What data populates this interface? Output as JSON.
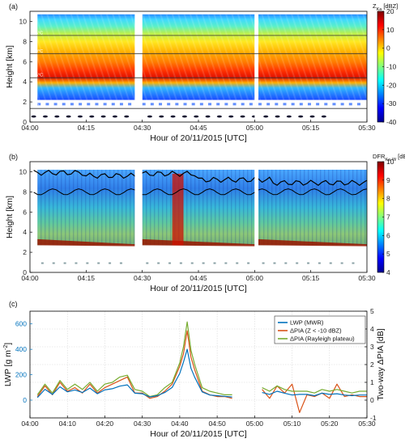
{
  "chart_data": [
    {
      "type": "heatmap",
      "panel_label": "(a)",
      "ylabel": "Height [km]",
      "xlabel": "Hour of 20/11/2015 [UTC]",
      "xlim": [
        "04:00",
        "05:30"
      ],
      "ylim": [
        0,
        11
      ],
      "x_ticks": [
        "04:00",
        "04:15",
        "04:30",
        "04:45",
        "05:00",
        "05:15",
        "05:30"
      ],
      "y_ticks": [
        "0",
        "2",
        "4",
        "6",
        "8",
        "10"
      ],
      "colorbar": {
        "label_main": "Z",
        "label_sub": "Ka",
        "label_unit": "[dBZ]",
        "range": [
          -40,
          20
        ],
        "ticks": [
          "20",
          "10",
          "0",
          "-10",
          "-20",
          "-30",
          "-40"
        ]
      },
      "isotherms": [
        {
          "label": "-45°C",
          "height_km": 8.6
        },
        {
          "label": "-30°C",
          "height_km": 6.8
        },
        {
          "label": "-15°C",
          "height_km": 4.4
        },
        {
          "label": "0°C",
          "height_km": 1.35
        }
      ],
      "data_gaps": [
        [
          "04:28",
          "04:30"
        ],
        [
          "05:00",
          "05:01"
        ]
      ]
    },
    {
      "type": "heatmap",
      "panel_label": "(b)",
      "ylabel": "Height [km]",
      "xlabel": "Hour of 20/11/2015 [UTC]",
      "xlim": [
        "04:00",
        "05:30"
      ],
      "ylim": [
        0,
        11
      ],
      "x_ticks": [
        "04:00",
        "04:15",
        "04:30",
        "04:45",
        "05:00",
        "05:15",
        "05:30"
      ],
      "y_ticks": [
        "0",
        "2",
        "4",
        "6",
        "8",
        "10"
      ],
      "colorbar": {
        "label_main": "DFR",
        "label_sub": "Ka-W",
        "label_unit": "[dB]",
        "range": [
          4,
          10
        ],
        "ticks": [
          "10",
          "9",
          "8",
          "7",
          "6",
          "5",
          "4"
        ]
      },
      "data_gaps": [
        [
          "04:28",
          "04:30"
        ],
        [
          "05:00",
          "05:01"
        ]
      ]
    },
    {
      "type": "line",
      "panel_label": "(c)",
      "xlabel": "Hour of 20/11/2015 [UTC]",
      "ylabel_left": "LWP [g m",
      "ylabel_left_sup": "-2",
      "ylabel_left_end": "]",
      "ylabel_right": "Two-way ΔPIA [dB]",
      "xlim": [
        "04:00",
        "05:30"
      ],
      "ylim_left": [
        -140,
        700
      ],
      "ylim_right": [
        -1,
        5
      ],
      "x_ticks": [
        "04:00",
        "04:10",
        "04:20",
        "04:30",
        "04:40",
        "04:50",
        "05:00",
        "05:10",
        "05:20",
        "05:30"
      ],
      "y_ticks_left": [
        "0",
        "200",
        "400",
        "600"
      ],
      "y_ticks_right": [
        "-1",
        "0",
        "1",
        "2",
        "3",
        "4",
        "5"
      ],
      "grid": true,
      "legend_position": "top-right",
      "x_minutes": [
        2,
        4,
        6,
        8,
        10,
        12,
        14,
        16,
        18,
        20,
        22,
        24,
        26,
        28,
        30,
        32,
        34,
        36,
        38,
        40,
        41,
        42,
        43,
        44,
        46,
        48,
        50,
        52,
        54,
        56,
        58,
        60,
        62,
        64,
        66,
        68,
        70,
        72,
        74,
        76,
        78,
        80,
        82,
        84,
        86,
        88,
        90
      ],
      "series": [
        {
          "name": "LWP (MWR)",
          "axis": "left",
          "color": "#0072bd",
          "values": [
            20,
            85,
            45,
            105,
            65,
            80,
            60,
            95,
            50,
            80,
            90,
            110,
            120,
            55,
            50,
            25,
            35,
            60,
            100,
            210,
            300,
            400,
            250,
            180,
            65,
            40,
            35,
            30,
            25,
            null,
            null,
            null,
            60,
            45,
            70,
            55,
            40,
            45,
            45,
            35,
            55,
            45,
            50,
            40,
            35,
            40,
            40
          ]
        },
        {
          "name": "ΔPIA (Z < -10 dBZ)",
          "axis": "right",
          "color": "#d95319",
          "values": [
            0.2,
            0.8,
            0.3,
            1.0,
            0.5,
            0.7,
            0.4,
            0.9,
            0.4,
            0.7,
            0.9,
            1.1,
            1.3,
            0.4,
            0.4,
            0.1,
            0.2,
            0.5,
            0.9,
            1.9,
            2.6,
            3.9,
            2.4,
            1.7,
            0.5,
            0.3,
            0.2,
            0.2,
            0.1,
            null,
            null,
            null,
            0.6,
            0.1,
            0.8,
            0.4,
            0.9,
            -0.7,
            0.3,
            0.2,
            0.4,
            0.1,
            0.9,
            0.2,
            0.3,
            0.2,
            0.2
          ]
        },
        {
          "name": "ΔPIA (Rayleigh plateau)",
          "axis": "right",
          "color": "#77ac30",
          "values": [
            0.3,
            0.9,
            0.4,
            1.1,
            0.6,
            0.9,
            0.6,
            1.0,
            0.5,
            0.9,
            1.0,
            1.3,
            1.4,
            0.6,
            0.5,
            0.2,
            0.3,
            0.7,
            1.0,
            2.1,
            3.0,
            4.4,
            2.8,
            2.0,
            0.7,
            0.5,
            0.4,
            0.3,
            0.3,
            null,
            null,
            null,
            0.7,
            0.5,
            0.8,
            0.6,
            0.5,
            0.5,
            0.5,
            0.4,
            0.6,
            0.5,
            0.6,
            0.5,
            0.4,
            0.5,
            0.5
          ]
        }
      ]
    }
  ]
}
